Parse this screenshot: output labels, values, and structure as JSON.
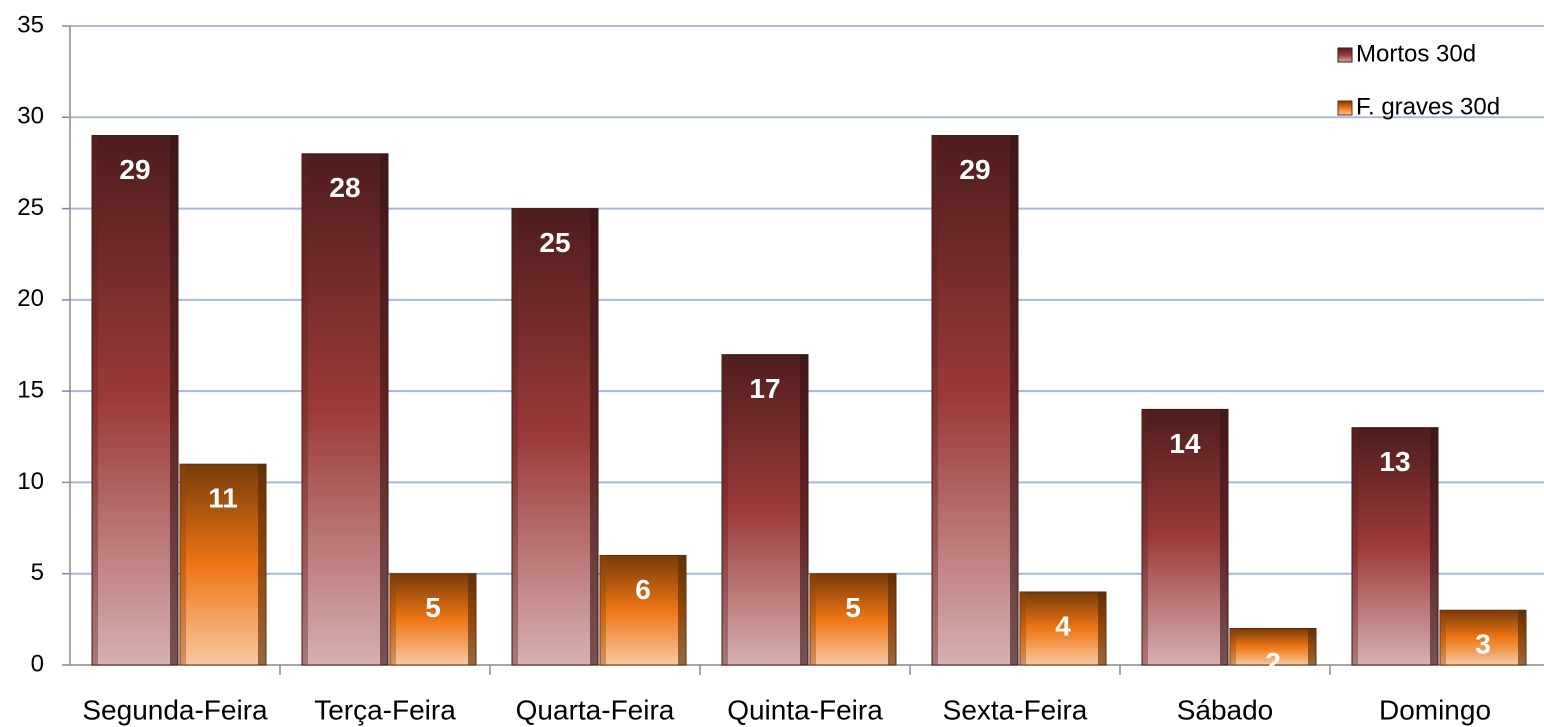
{
  "chart_data": {
    "type": "bar",
    "categories": [
      "Segunda-Feira",
      "Terça-Feira",
      "Quarta-Feira",
      "Quinta-Feira",
      "Sexta-Feira",
      "Sábado",
      "Domingo"
    ],
    "series": [
      {
        "name": "Mortos 30d",
        "color": "#9c3a3a",
        "values": [
          29,
          28,
          25,
          17,
          29,
          14,
          13
        ]
      },
      {
        "name": "F. graves 30d",
        "color": "#ee7614",
        "values": [
          11,
          5,
          6,
          5,
          4,
          2,
          3
        ]
      }
    ],
    "ylim": [
      0,
      35
    ],
    "yticks": [
      0,
      5,
      10,
      15,
      20,
      25,
      30,
      35
    ],
    "grid": true,
    "legend": "top-right"
  }
}
